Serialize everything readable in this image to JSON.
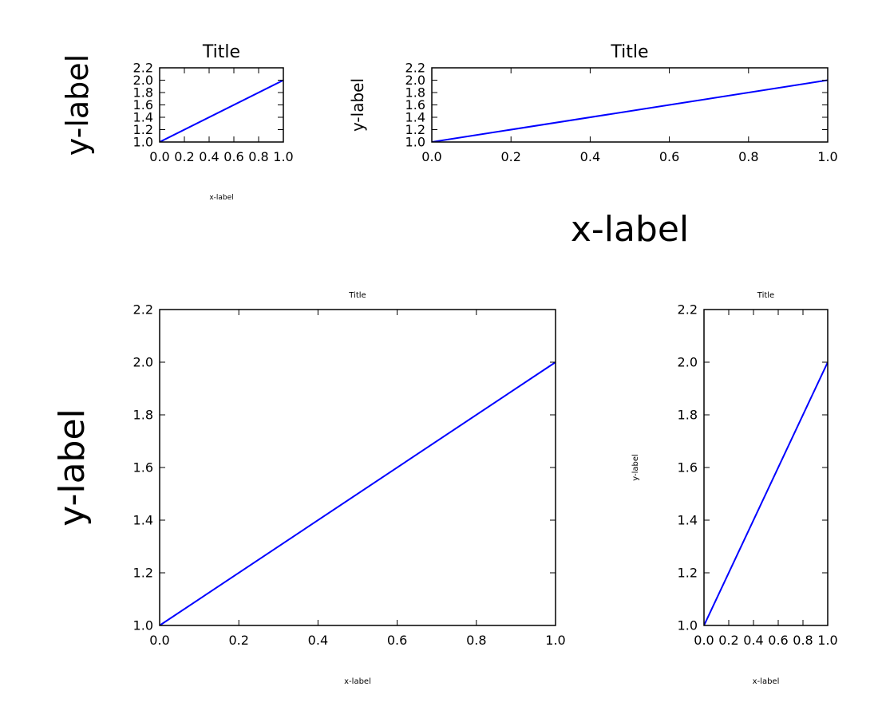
{
  "chart_data": [
    {
      "type": "line",
      "title": "Title",
      "xlabel": "x-label",
      "ylabel": "y-label",
      "xlim": [
        0.0,
        1.0
      ],
      "ylim": [
        1.0,
        2.2
      ],
      "xticks": [
        "0.0",
        "0.2",
        "0.4",
        "0.6",
        "0.8",
        "1.0"
      ],
      "yticks": [
        "1.0",
        "1.2",
        "1.4",
        "1.6",
        "1.8",
        "2.0",
        "2.2"
      ],
      "series": [
        {
          "x": [
            0.0,
            1.0
          ],
          "y": [
            1.0,
            2.0
          ],
          "color": "#0000ff"
        }
      ]
    },
    {
      "type": "line",
      "title": "Title",
      "xlabel": "x-label",
      "ylabel": "y-label",
      "xlim": [
        0.0,
        1.0
      ],
      "ylim": [
        1.0,
        2.2
      ],
      "xticks": [
        "0.0",
        "0.2",
        "0.4",
        "0.6",
        "0.8",
        "1.0"
      ],
      "yticks": [
        "1.0",
        "1.2",
        "1.4",
        "1.6",
        "1.8",
        "2.0",
        "2.2"
      ],
      "series": [
        {
          "x": [
            0.0,
            1.0
          ],
          "y": [
            1.0,
            2.0
          ],
          "color": "#0000ff"
        }
      ]
    },
    {
      "type": "line",
      "title": "Title",
      "xlabel": "x-label",
      "ylabel": "y-label",
      "xlim": [
        0.0,
        1.0
      ],
      "ylim": [
        1.0,
        2.2
      ],
      "xticks": [
        "0.0",
        "0.2",
        "0.4",
        "0.6",
        "0.8",
        "1.0"
      ],
      "yticks": [
        "1.0",
        "1.2",
        "1.4",
        "1.6",
        "1.8",
        "2.0",
        "2.2"
      ],
      "series": [
        {
          "x": [
            0.0,
            1.0
          ],
          "y": [
            1.0,
            2.0
          ],
          "color": "#0000ff"
        }
      ]
    },
    {
      "type": "line",
      "title": "Title",
      "xlabel": "x-label",
      "ylabel": "y-label",
      "xlim": [
        0.0,
        1.0
      ],
      "ylim": [
        1.0,
        2.2
      ],
      "xticks": [
        "0.0",
        "0.2",
        "0.4",
        "0.6",
        "0.8",
        "1.0"
      ],
      "yticks": [
        "1.0",
        "1.2",
        "1.4",
        "1.6",
        "1.8",
        "2.0",
        "2.2"
      ],
      "series": [
        {
          "x": [
            0.0,
            1.0
          ],
          "y": [
            1.0,
            2.0
          ],
          "color": "#0000ff"
        }
      ]
    }
  ]
}
